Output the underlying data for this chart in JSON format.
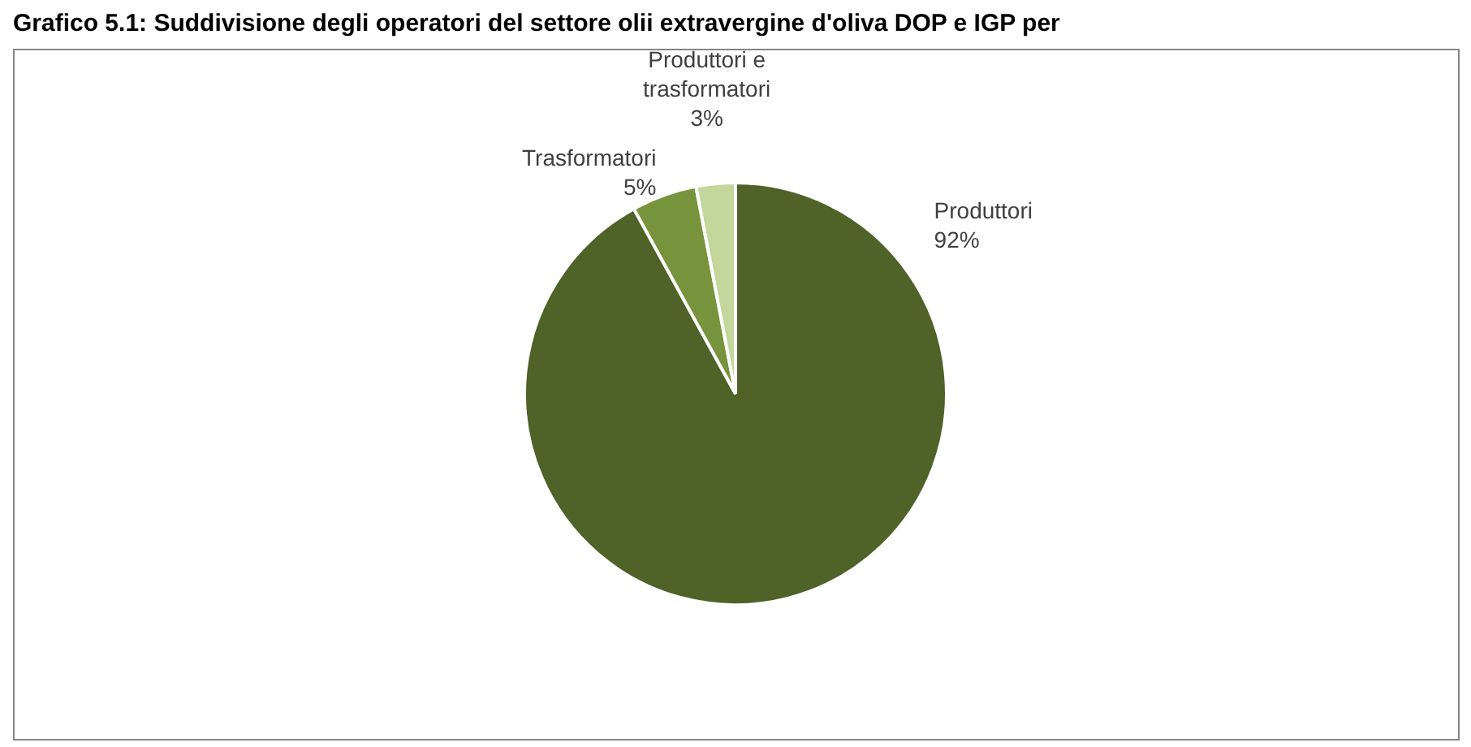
{
  "chart_data": {
    "type": "pie",
    "title": "Grafico 5.1: Suddivisione degli operatori del settore olii extravergine d'oliva DOP e IGP per",
    "categories": [
      "Produttori",
      "Trasformatori",
      "Produttori e trasformatori"
    ],
    "values": [
      92,
      5,
      3
    ],
    "colors": [
      "#4f6228",
      "#77933c",
      "#c3d69b"
    ],
    "value_labels": [
      "92%",
      "5%",
      "3%"
    ]
  }
}
